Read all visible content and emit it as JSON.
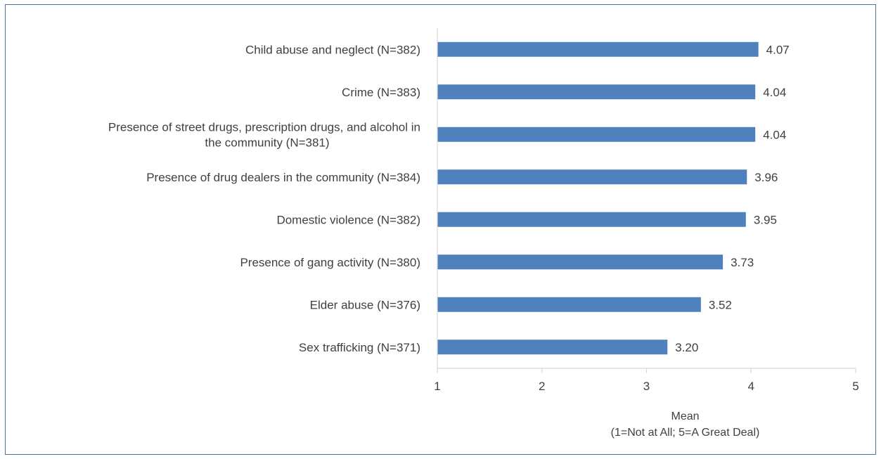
{
  "chart_data": {
    "type": "bar",
    "orientation": "horizontal",
    "categories": [
      [
        "Child abuse and neglect (N=382)"
      ],
      [
        "Crime (N=383)"
      ],
      [
        "Presence of street drugs, prescription drugs, and alcohol in",
        "the community (N=381)"
      ],
      [
        "Presence of drug dealers in the community (N=384)"
      ],
      [
        "Domestic violence (N=382)"
      ],
      [
        "Presence of gang activity (N=380)"
      ],
      [
        "Elder abuse (N=376)"
      ],
      [
        "Sex trafficking (N=371)"
      ]
    ],
    "values": [
      4.07,
      4.04,
      4.04,
      3.96,
      3.95,
      3.73,
      3.52,
      3.2
    ],
    "value_labels": [
      "4.07",
      "4.04",
      "4.04",
      "3.96",
      "3.95",
      "3.73",
      "3.52",
      "3.20"
    ],
    "xlim": [
      1,
      5
    ],
    "xticks": [
      "1",
      "2",
      "3",
      "4",
      "5"
    ],
    "xlabel": [
      "Mean",
      "(1=Not at All; 5=A Great Deal)"
    ],
    "bar_color": "#4f81bd",
    "grid": false,
    "legend": "none"
  }
}
